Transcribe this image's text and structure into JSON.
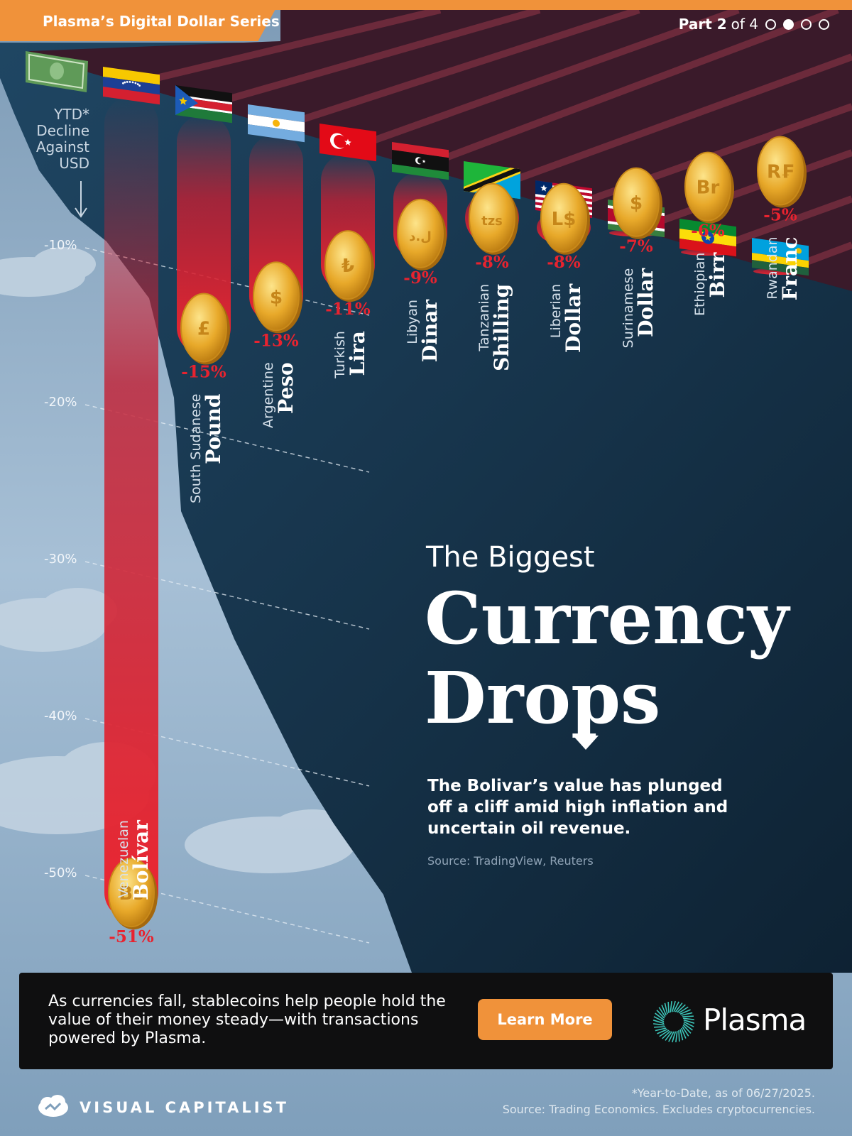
{
  "header": {
    "series_label": "Plasma’s Digital Dollar Series",
    "part_word": "Part 2",
    "part_of": "of 4",
    "part_current": 2,
    "part_total": 4
  },
  "colors": {
    "accent_orange": "#f0923a",
    "bar_red": "#e8232f",
    "value_red": "#e8232f",
    "coin_gold": "#e8a92a",
    "sky": "#9fbad1",
    "cliff_dark": "#14324a",
    "roof": "#5a2030"
  },
  "y_axis": {
    "label_line1": "YTD*",
    "label_line2": "Decline",
    "label_line3": "Against",
    "label_line4": "USD"
  },
  "chart_data": {
    "type": "bar",
    "orientation": "vertical-downward",
    "title": "The Biggest Currency Drops",
    "ylabel": "YTD* Decline Against USD",
    "ylim": [
      0,
      -55
    ],
    "ticks": [
      "-10%",
      "-20%",
      "-30%",
      "-40%",
      "-50%"
    ],
    "tick_values": [
      -10,
      -20,
      -30,
      -40,
      -50
    ],
    "grid": true,
    "series": [
      {
        "values": [
          -51,
          -15,
          -13,
          -11,
          -9,
          -8,
          -8,
          -7,
          -6,
          -5
        ]
      }
    ],
    "currencies": [
      {
        "country": "Venezuelan",
        "currency": "Bolívar",
        "value": -51,
        "label": "-51%",
        "symbol": "Bs",
        "flag": "venezuela"
      },
      {
        "country": "South Sudanese",
        "currency": "Pound",
        "value": -15,
        "label": "-15%",
        "symbol": "£",
        "flag": "south-sudan"
      },
      {
        "country": "Argentine",
        "currency": "Peso",
        "value": -13,
        "label": "-13%",
        "symbol": "$",
        "flag": "argentina"
      },
      {
        "country": "Turkish",
        "currency": "Lira",
        "value": -11,
        "label": "-11%",
        "symbol": "₺",
        "flag": "turkey"
      },
      {
        "country": "Libyan",
        "currency": "Dinar",
        "value": -9,
        "label": "-9%",
        "symbol": "ل.د",
        "flag": "libya"
      },
      {
        "country": "Tanzanian",
        "currency": "Shilling",
        "value": -8,
        "label": "-8%",
        "symbol": "tzs",
        "flag": "tanzania"
      },
      {
        "country": "Liberian",
        "currency": "Dollar",
        "value": -8,
        "label": "-8%",
        "symbol": "L$",
        "flag": "liberia"
      },
      {
        "country": "Surinamese",
        "currency": "Dollar",
        "value": -7,
        "label": "-7%",
        "symbol": "$",
        "flag": "suriname"
      },
      {
        "country": "Ethiopian",
        "currency": "Birr",
        "value": -6,
        "label": "-6%",
        "symbol": "Br",
        "flag": "ethiopia"
      },
      {
        "country": "Rwandan",
        "currency": "Franc",
        "value": -5,
        "label": "-5%",
        "symbol": "R₣",
        "flag": "rwanda"
      }
    ]
  },
  "title": {
    "pre": "The Biggest",
    "main_line1": "Currency",
    "main_line2": "Drops"
  },
  "subtitle": "The Bolivar’s value has plunged off a cliff amid high inflation and uncertain oil revenue.",
  "source_top": "Source: TradingView, Reuters",
  "promo": {
    "text": "As currencies fall, stablecoins help people hold the value of their money steady—with transactions powered by Plasma.",
    "button_label": "Learn More",
    "brand_name": "Plasma"
  },
  "footer": {
    "publisher": "VISUAL CAPITALIST",
    "note_line1": "*Year-to-Date, as of 06/27/2025.",
    "note_line2": "Source: Trading Economics. Excludes cryptocurrencies."
  }
}
